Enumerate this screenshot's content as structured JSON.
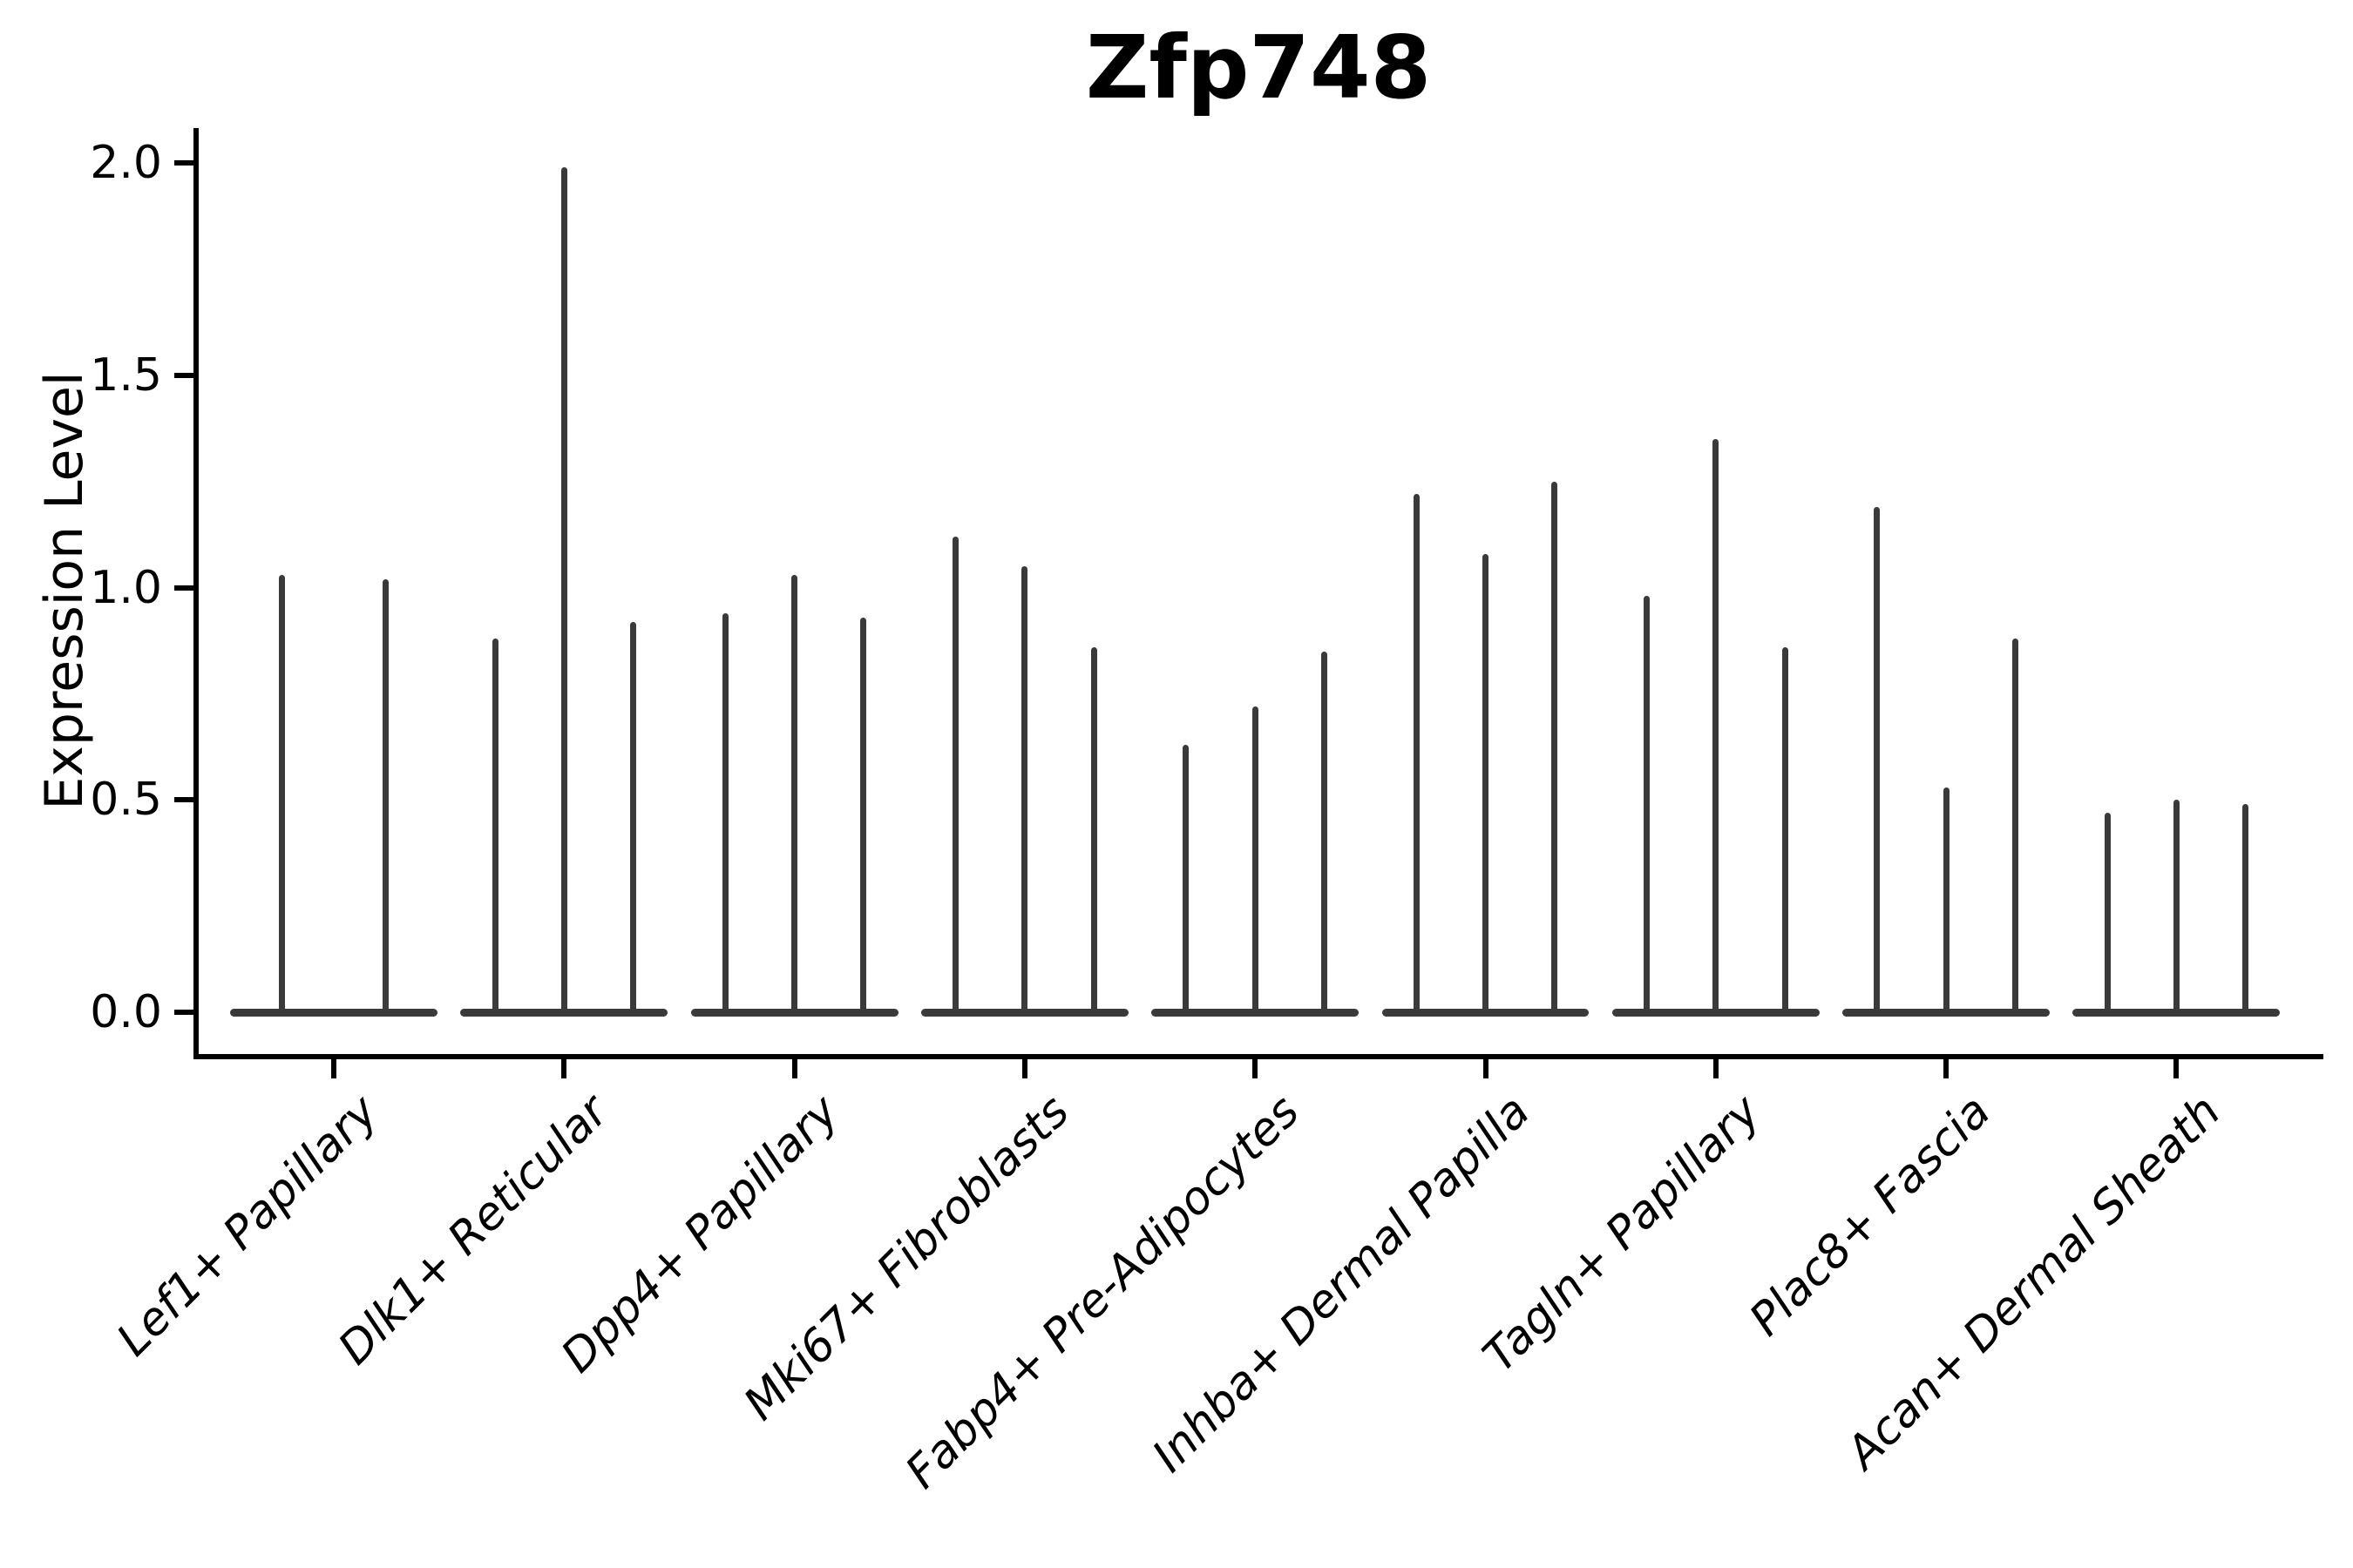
{
  "chart_data": {
    "type": "violin",
    "title": "Zfp748",
    "ylabel": "Expression Level",
    "xlabel": "",
    "ylim": [
      -0.07,
      2.08
    ],
    "grid": false,
    "legend": "none",
    "yticks": [
      0.0,
      0.5,
      1.0,
      1.5,
      2.0
    ],
    "ytick_labels": [
      "0.0",
      "0.5",
      "1.0",
      "1.5",
      "2.0"
    ],
    "categories": [
      "Lef1+ Papillary",
      "Dlk1+ Reticular",
      "Dpp4+ Papillary",
      "Mki67+ Fibroblasts",
      "Fabp4+ Pre-Adipocytes",
      "Inhba+ Dermal Papilla",
      "Tagln+ Papillary",
      "Plac8+ Fascia",
      "Acan+ Dermal Sheath"
    ],
    "groups": [
      {
        "category": "Lef1+ Papillary",
        "violin_peak_values": [
          1.03,
          1.02
        ]
      },
      {
        "category": "Dlk1+ Reticular",
        "violin_peak_values": [
          0.88,
          1.99,
          0.92
        ]
      },
      {
        "category": "Dpp4+ Papillary",
        "violin_peak_values": [
          0.94,
          1.03,
          0.93
        ]
      },
      {
        "category": "Mki67+ Fibroblasts",
        "violin_peak_values": [
          1.12,
          1.05,
          0.86
        ]
      },
      {
        "category": "Fabp4+ Pre-Adipocytes",
        "violin_peak_values": [
          0.63,
          0.72,
          0.85
        ]
      },
      {
        "category": "Inhba+ Dermal Papilla",
        "violin_peak_values": [
          1.22,
          1.08,
          1.25
        ]
      },
      {
        "category": "Tagln+ Papillary",
        "violin_peak_values": [
          0.98,
          1.35,
          0.86
        ]
      },
      {
        "category": "Plac8+ Fascia",
        "violin_peak_values": [
          1.19,
          0.53,
          0.88
        ]
      },
      {
        "category": "Acan+ Dermal Sheath",
        "violin_peak_values": [
          0.47,
          0.5,
          0.49
        ]
      }
    ],
    "violin_bodies_note": "density mass concentrated at 0 with thin spike to peak value",
    "colors": {
      "violin": "#3a3a3a",
      "axis": "#000000",
      "text": "#000000",
      "background": "#ffffff"
    }
  }
}
